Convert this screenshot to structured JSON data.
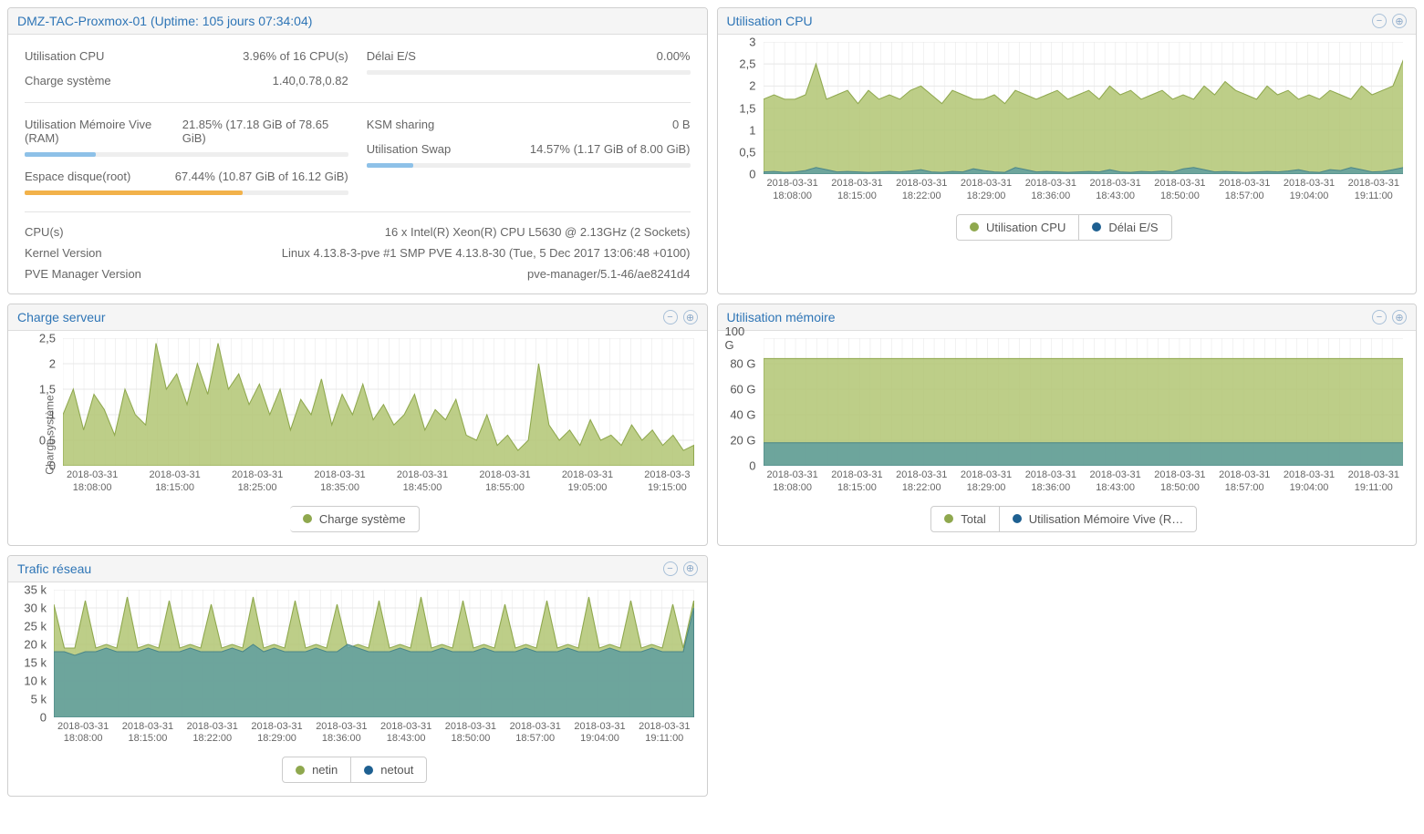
{
  "colors": {
    "panel_title": "#2e75b6",
    "text": "#666666",
    "grid": "#e8e8e8",
    "border": "#cfcfcf",
    "series_green_fill": "#b2c673",
    "series_green_stroke": "#8fa84e",
    "series_teal_fill": "#5f9ea0",
    "series_teal_stroke": "#4a8688",
    "series_blue": "#1e6091",
    "bar_blue": "#8ec1e8",
    "bar_orange": "#f2b24a"
  },
  "summary": {
    "title": "DMZ-TAC-Proxmox-01 (Uptime: 105 jours 07:34:04)",
    "left": [
      {
        "label": "Utilisation CPU",
        "value": "3.96% of 16 CPU(s)"
      },
      {
        "label": "Charge système",
        "value": "1.40,0.78,0.82"
      }
    ],
    "left2": [
      {
        "label": "Utilisation Mémoire Vive (RAM)",
        "value": "21.85% (17.18 GiB of 78.65 GiB)",
        "bar_pct": 21.85,
        "bar_color": "#8ec1e8"
      },
      {
        "label": "Espace disque(root)",
        "value": "67.44% (10.87 GiB of 16.12 GiB)",
        "bar_pct": 67.44,
        "bar_color": "#f2b24a"
      }
    ],
    "right": [
      {
        "label": "Délai E/S",
        "value": "0.00%",
        "bar_pct": 0,
        "bar_color": "#8ec1e8"
      }
    ],
    "right2": [
      {
        "label": "KSM sharing",
        "value": "0 B"
      },
      {
        "label": "Utilisation Swap",
        "value": "14.57% (1.17 GiB of 8.00 GiB)",
        "bar_pct": 14.57,
        "bar_color": "#8ec1e8"
      }
    ],
    "info": [
      {
        "label": "CPU(s)",
        "value": "16 x Intel(R) Xeon(R) CPU L5630 @ 2.13GHz (2 Sockets)"
      },
      {
        "label": "Kernel Version",
        "value": "Linux 4.13.8-3-pve #1 SMP PVE 4.13.8-30 (Tue, 5 Dec 2017 13:06:48 +0100)"
      },
      {
        "label": "PVE Manager Version",
        "value": "pve-manager/5.1-46/ae8241d4"
      }
    ]
  },
  "charts": {
    "cpu": {
      "title": "Utilisation CPU",
      "ylim": [
        0,
        3
      ],
      "ytick_step": 0.5,
      "yticks": [
        "3",
        "2,5",
        "2",
        "1,5",
        "1",
        "0,5",
        "0"
      ],
      "xticks": [
        "2018-03-31\n18:08:00",
        "2018-03-31\n18:15:00",
        "2018-03-31\n18:22:00",
        "2018-03-31\n18:29:00",
        "2018-03-31\n18:36:00",
        "2018-03-31\n18:43:00",
        "2018-03-31\n18:50:00",
        "2018-03-31\n18:57:00",
        "2018-03-31\n19:04:00",
        "2018-03-31\n19:11:00"
      ],
      "series": [
        {
          "name": "Utilisation CPU",
          "color": "#b2c673",
          "stroke": "#8fa84e",
          "values": [
            1.7,
            1.8,
            1.7,
            1.7,
            1.8,
            2.5,
            1.7,
            1.8,
            1.9,
            1.6,
            1.9,
            1.7,
            1.8,
            1.7,
            1.9,
            2.0,
            1.8,
            1.6,
            1.9,
            1.8,
            1.7,
            1.7,
            1.8,
            1.6,
            1.9,
            1.8,
            1.7,
            1.8,
            1.9,
            1.7,
            1.8,
            1.9,
            1.7,
            2.0,
            1.8,
            1.9,
            1.7,
            1.8,
            1.9,
            1.7,
            1.8,
            1.7,
            2.0,
            1.8,
            2.1,
            1.9,
            1.8,
            1.7,
            2.0,
            1.8,
            1.9,
            1.7,
            1.8,
            1.7,
            1.9,
            1.8,
            1.7,
            2.0,
            1.8,
            1.9,
            2.0,
            2.6
          ]
        },
        {
          "name": "Délai E/S",
          "color": "#5f9ea0",
          "stroke": "#4a8688",
          "values": [
            0.05,
            0.06,
            0.04,
            0.05,
            0.08,
            0.15,
            0.1,
            0.05,
            0.06,
            0.05,
            0.04,
            0.05,
            0.06,
            0.05,
            0.07,
            0.1,
            0.05,
            0.04,
            0.06,
            0.05,
            0.12,
            0.08,
            0.05,
            0.04,
            0.15,
            0.1,
            0.05,
            0.06,
            0.05,
            0.04,
            0.05,
            0.06,
            0.05,
            0.1,
            0.05,
            0.04,
            0.06,
            0.05,
            0.07,
            0.05,
            0.12,
            0.15,
            0.1,
            0.05,
            0.06,
            0.05,
            0.04,
            0.05,
            0.06,
            0.05,
            0.07,
            0.1,
            0.05,
            0.04,
            0.1,
            0.08,
            0.15,
            0.1,
            0.05,
            0.06,
            0.1,
            0.15
          ]
        }
      ],
      "legend": [
        "Utilisation CPU",
        "Délai E/S"
      ]
    },
    "load": {
      "title": "Charge serveur",
      "ylabel": "Charge système",
      "ylim": [
        0,
        2.5
      ],
      "ytick_step": 0.5,
      "yticks": [
        "2,5",
        "2",
        "1,5",
        "1",
        "0,5",
        "0"
      ],
      "xticks": [
        "2018-03-31\n18:08:00",
        "2018-03-31\n18:15:00",
        "2018-03-31\n18:25:00",
        "2018-03-31\n18:35:00",
        "2018-03-31\n18:45:00",
        "2018-03-31\n18:55:00",
        "2018-03-31\n19:05:00",
        "2018-03-3\n19:15:00"
      ],
      "series": [
        {
          "name": "Charge système",
          "color": "#b2c673",
          "stroke": "#8fa84e",
          "values": [
            1.0,
            1.5,
            0.7,
            1.4,
            1.1,
            0.6,
            1.5,
            1.0,
            0.8,
            2.4,
            1.5,
            1.8,
            1.2,
            2.0,
            1.4,
            2.4,
            1.5,
            1.8,
            1.2,
            1.6,
            1.0,
            1.5,
            0.7,
            1.3,
            1.0,
            1.7,
            0.8,
            1.4,
            1.0,
            1.6,
            0.9,
            1.2,
            0.8,
            1.0,
            1.4,
            0.7,
            1.1,
            0.9,
            1.3,
            0.6,
            0.5,
            1.0,
            0.4,
            0.6,
            0.3,
            0.5,
            2.0,
            0.8,
            0.5,
            0.7,
            0.4,
            0.9,
            0.5,
            0.6,
            0.4,
            0.8,
            0.5,
            0.7,
            0.4,
            0.6,
            0.3,
            0.4
          ]
        }
      ],
      "legend": [
        "Charge système"
      ]
    },
    "mem": {
      "title": "Utilisation mémoire",
      "ylim": [
        0,
        100
      ],
      "ytick_step": 20,
      "yticks": [
        "100 G",
        "80 G",
        "60 G",
        "40 G",
        "20 G",
        "0"
      ],
      "xticks": [
        "2018-03-31\n18:08:00",
        "2018-03-31\n18:15:00",
        "2018-03-31\n18:22:00",
        "2018-03-31\n18:29:00",
        "2018-03-31\n18:36:00",
        "2018-03-31\n18:43:00",
        "2018-03-31\n18:50:00",
        "2018-03-31\n18:57:00",
        "2018-03-31\n19:04:00",
        "2018-03-31\n19:11:00"
      ],
      "series": [
        {
          "name": "Total",
          "color": "#b2c673",
          "stroke": "#8fa84e",
          "values": [
            84,
            84,
            84,
            84,
            84,
            84,
            84,
            84,
            84,
            84,
            84,
            84,
            84,
            84,
            84,
            84,
            84,
            84,
            84,
            84,
            84,
            84,
            84,
            84,
            84,
            84,
            84,
            84,
            84,
            84,
            84,
            84,
            84,
            84,
            84,
            84,
            84,
            84,
            84,
            84,
            84,
            84,
            84,
            84,
            84,
            84,
            84,
            84,
            84,
            84,
            84,
            84,
            84,
            84,
            84,
            84,
            84,
            84,
            84,
            84,
            84,
            84
          ]
        },
        {
          "name": "Utilisation Mémoire Vive (R…",
          "color": "#5f9ea0",
          "stroke": "#4a8688",
          "values": [
            18,
            18,
            18,
            18,
            18,
            18,
            18,
            18,
            18,
            18,
            18,
            18,
            18,
            18,
            18,
            18,
            18,
            18,
            18,
            18,
            18,
            18,
            18,
            18,
            18,
            18,
            18,
            18,
            18,
            18,
            18,
            18,
            18,
            18,
            18,
            18,
            18,
            18,
            18,
            18,
            18,
            18,
            18,
            18,
            18,
            18,
            18,
            18,
            18,
            18,
            18,
            18,
            18,
            18,
            18,
            18,
            18,
            18,
            18,
            18,
            18,
            18
          ]
        }
      ],
      "legend": [
        "Total",
        "Utilisation Mémoire Vive (R…"
      ]
    },
    "net": {
      "title": "Trafic réseau",
      "ylim": [
        0,
        35
      ],
      "ytick_step": 5,
      "yticks": [
        "35 k",
        "30 k",
        "25 k",
        "20 k",
        "15 k",
        "10 k",
        "5 k",
        "0"
      ],
      "xticks": [
        "2018-03-31\n18:08:00",
        "2018-03-31\n18:15:00",
        "2018-03-31\n18:22:00",
        "2018-03-31\n18:29:00",
        "2018-03-31\n18:36:00",
        "2018-03-31\n18:43:00",
        "2018-03-31\n18:50:00",
        "2018-03-31\n18:57:00",
        "2018-03-31\n19:04:00",
        "2018-03-31\n19:11:00"
      ],
      "series": [
        {
          "name": "netin",
          "color": "#b2c673",
          "stroke": "#8fa84e",
          "values": [
            31,
            19,
            19,
            32,
            19,
            20,
            19,
            33,
            19,
            20,
            19,
            32,
            19,
            20,
            19,
            31,
            19,
            20,
            19,
            33,
            19,
            20,
            19,
            32,
            19,
            20,
            19,
            31,
            19,
            20,
            19,
            32,
            19,
            20,
            19,
            33,
            19,
            20,
            19,
            32,
            19,
            20,
            19,
            31,
            19,
            20,
            19,
            32,
            19,
            20,
            19,
            33,
            19,
            20,
            19,
            32,
            19,
            20,
            19,
            31,
            19,
            32
          ]
        },
        {
          "name": "netout",
          "color": "#5f9ea0",
          "stroke": "#4a8688",
          "values": [
            18,
            18,
            17,
            18,
            18,
            19,
            18,
            18,
            18,
            19,
            18,
            18,
            18,
            19,
            18,
            18,
            18,
            19,
            18,
            20,
            18,
            19,
            18,
            18,
            18,
            19,
            18,
            18,
            20,
            19,
            18,
            18,
            18,
            19,
            18,
            18,
            18,
            19,
            18,
            18,
            18,
            19,
            18,
            18,
            18,
            19,
            18,
            18,
            18,
            19,
            18,
            18,
            18,
            19,
            18,
            18,
            18,
            19,
            18,
            18,
            18,
            30
          ]
        }
      ],
      "legend": [
        "netin",
        "netout"
      ]
    }
  }
}
